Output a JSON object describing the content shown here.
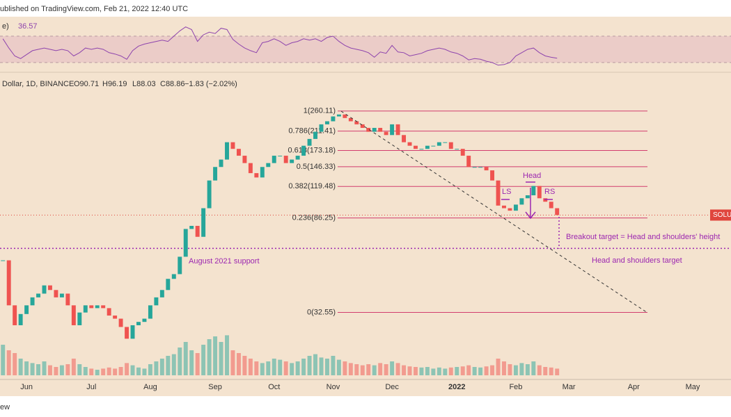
{
  "chart_data": {
    "type": "candlestick",
    "header": "ublished on TradingView.com, Feb 21, 2022 12:40 UTC",
    "symbol": "Dollar, 1D, BINANCE",
    "ohlc": [
      "O90.71",
      "H96.19",
      "L88.03",
      "C88.86",
      "−1.83 (−2.02%)"
    ],
    "categories": [
      null,
      null,
      null,
      null,
      "Jun",
      null,
      null,
      null,
      null,
      null,
      null,
      null,
      null,
      null,
      null,
      "Jul",
      null,
      null,
      null,
      null,
      null,
      null,
      null,
      null,
      null,
      "Aug",
      null,
      null,
      null,
      null,
      null,
      null,
      null,
      null,
      null,
      null,
      "Sep",
      null,
      null,
      null,
      null,
      null,
      null,
      null,
      null,
      null,
      "Oct",
      null,
      null,
      null,
      null,
      null,
      null,
      null,
      null,
      null,
      "Nov",
      null,
      null,
      null,
      null,
      null,
      null,
      null,
      null,
      null,
      "Dec",
      null,
      null,
      null,
      null,
      null,
      null,
      null,
      null,
      null,
      null,
      "2022",
      null,
      null,
      null,
      null,
      null,
      null,
      null,
      null,
      null,
      "Feb",
      null,
      null,
      null,
      null,
      null,
      null,
      null,
      null,
      "Mar",
      null,
      null,
      null,
      null,
      null,
      null,
      null,
      null,
      null,
      null,
      "Apr",
      null,
      null,
      null,
      null,
      null,
      null,
      null,
      null,
      null,
      "May",
      null,
      null,
      null,
      null,
      null,
      null
    ],
    "values": [
      55.7,
      35,
      28.5,
      32,
      35,
      38,
      39.5,
      43,
      41,
      38,
      39.5,
      35,
      28.5,
      32.5,
      35,
      34,
      35,
      34,
      31.5,
      30.5,
      28,
      24.8,
      28.5,
      29.5,
      30.5,
      35,
      38,
      41,
      46,
      48.3,
      57.8,
      77,
      79.5,
      71,
      95.4,
      127,
      146,
      157.6,
      188.5,
      176,
      164,
      152,
      137,
      131,
      146,
      152,
      164,
      164,
      152,
      157.6,
      164,
      181.8,
      195,
      210,
      226.7,
      234,
      246,
      251,
      242,
      234,
      226.7,
      218.6,
      210,
      218.6,
      210,
      203,
      226.7,
      203,
      188.5,
      181.8,
      176,
      176,
      181.8,
      181.8,
      188.5,
      188.5,
      176,
      176,
      164,
      146,
      146,
      146,
      141,
      127,
      98,
      95.4,
      93,
      99,
      105.7,
      109,
      120,
      105.7,
      102,
      95.4,
      88.86,
      null,
      null,
      null,
      null,
      null,
      null,
      null,
      null,
      null,
      null,
      null,
      null,
      null,
      null,
      null,
      null,
      null,
      null,
      null,
      null,
      null,
      null,
      null,
      null,
      null,
      null,
      null,
      null,
      null
    ],
    "up_color": "#26a69a",
    "down_color": "#ef5350",
    "log_scale": true,
    "ylim": [
      17,
      322
    ],
    "volume": [
      55,
      45,
      40,
      30,
      25,
      22,
      20,
      25,
      18,
      15,
      18,
      20,
      30,
      20,
      15,
      12,
      10,
      12,
      14,
      12,
      15,
      22,
      18,
      14,
      12,
      20,
      25,
      30,
      35,
      38,
      50,
      60,
      45,
      40,
      55,
      65,
      70,
      60,
      72,
      45,
      40,
      35,
      30,
      25,
      22,
      25,
      30,
      28,
      25,
      22,
      25,
      30,
      35,
      38,
      32,
      30,
      35,
      28,
      25,
      22,
      20,
      18,
      20,
      18,
      22,
      20,
      25,
      22,
      18,
      16,
      15,
      14,
      15,
      12,
      14,
      12,
      14,
      15,
      16,
      18,
      15,
      14,
      16,
      18,
      30,
      25,
      20,
      18,
      22,
      20,
      25,
      18,
      15,
      14,
      12,
      null,
      null,
      null,
      null,
      null,
      null,
      null,
      null,
      null,
      null,
      null,
      null,
      null,
      null,
      null,
      null,
      null,
      null,
      null,
      null,
      null,
      null,
      null,
      null,
      null,
      null,
      null,
      null,
      null
    ],
    "volume_ylim": [
      0,
      100
    ],
    "rsi": {
      "label": "e)",
      "value_label": "36.57",
      "color": "#8e44ad",
      "ylim": [
        19.5,
        98.4
      ],
      "bands": [
        30,
        70
      ],
      "values": [
        66,
        52,
        40,
        36,
        42,
        48,
        50,
        52,
        50,
        48,
        50,
        48,
        40,
        45,
        52,
        50,
        52,
        50,
        45,
        43,
        40,
        35,
        48,
        55,
        58,
        60,
        62,
        64,
        62,
        70,
        78,
        84,
        80,
        62,
        72,
        76,
        74,
        82,
        80,
        65,
        58,
        52,
        48,
        45,
        60,
        62,
        66,
        62,
        56,
        60,
        62,
        66,
        64,
        66,
        62,
        68,
        70,
        62,
        56,
        52,
        50,
        48,
        45,
        38,
        46,
        44,
        56,
        46,
        45,
        40,
        42,
        44,
        48,
        50,
        52,
        50,
        46,
        44,
        40,
        34,
        36,
        35,
        32,
        30,
        26,
        27,
        30,
        40,
        45,
        50,
        52,
        45,
        40,
        38,
        36.57,
        null,
        null,
        null,
        null,
        null,
        null,
        null,
        null,
        null,
        null,
        null,
        null,
        null,
        null,
        null,
        null,
        null,
        null,
        null,
        null,
        null,
        null,
        null,
        null,
        null,
        null,
        null,
        null,
        null
      ]
    },
    "fib": {
      "color": "#d23c6e",
      "levels": [
        {
          "label": "1(260.11)",
          "value": 260.11
        },
        {
          "label": "0.786(211.41)",
          "value": 211.41
        },
        {
          "label": "0.618(173.18)",
          "value": 173.18
        },
        {
          "label": "0.5(146.33)",
          "value": 146.33
        },
        {
          "label": "0.382(119.48)",
          "value": 119.48
        },
        {
          "label": "0.236(86.25)",
          "value": 86.25
        },
        {
          "label": "0(32.55)",
          "value": 32.55
        }
      ]
    },
    "support": {
      "value": 63,
      "label": "August 2021 support",
      "color": "#9c27b0"
    },
    "last_price": {
      "value": 88.86,
      "label": "SOLUS",
      "color": "#e0453d"
    },
    "annotations": {
      "head": "Head",
      "ls": "LS",
      "rs": "RS",
      "breakout": "Breakout target = Head and shoulders' height",
      "target": "Head and shoulders target"
    },
    "footer": "ew"
  }
}
